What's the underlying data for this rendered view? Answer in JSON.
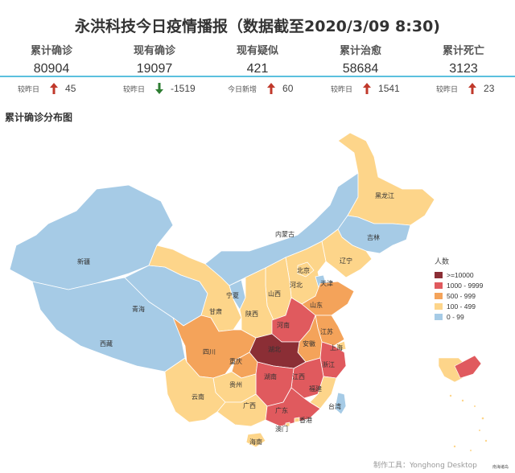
{
  "header": {
    "title": "永洪科技今日疫情播报（数据截至2020/3/09 8:30)"
  },
  "stats": [
    {
      "label": "累计确诊",
      "value": "80904"
    },
    {
      "label": "现有确诊",
      "value": "19097"
    },
    {
      "label": "现有疑似",
      "value": "421"
    },
    {
      "label": "累计治愈",
      "value": "58684"
    },
    {
      "label": "累计死亡",
      "value": "3123"
    }
  ],
  "deltas": [
    {
      "label": "较昨日",
      "direction": "up",
      "value": "45"
    },
    {
      "label": "较昨日",
      "direction": "down",
      "value": "-1519"
    },
    {
      "label": "今日新增",
      "direction": "up",
      "value": "60"
    },
    {
      "label": "较昨日",
      "direction": "up",
      "value": "1541"
    },
    {
      "label": "较昨日",
      "direction": "up",
      "value": "23"
    }
  ],
  "map": {
    "title": "累计确诊分布图",
    "legend_title": "人数",
    "legend": [
      {
        "label": ">=10000",
        "color": "#8b2e35"
      },
      {
        "label": "1000 - 9999",
        "color": "#e05a5e"
      },
      {
        "label": "500 - 999",
        "color": "#f4a35a"
      },
      {
        "label": "100 - 499",
        "color": "#fdd58a"
      },
      {
        "label": "0 - 99",
        "color": "#a6cbe6"
      }
    ],
    "labels": {
      "heilongjiang": "黑龙江",
      "jilin": "吉林",
      "liaoning": "辽宁",
      "neimenggu": "内蒙古",
      "xinjiang": "新疆",
      "xizang": "西藏",
      "qinghai": "青海",
      "gansu": "甘肃",
      "ningxia": "宁夏",
      "shaanxi": "陕西",
      "shanxi": "山西",
      "hebei": "河北",
      "beijing": "北京",
      "tianjin": "天津",
      "shandong": "山东",
      "henan": "河南",
      "jiangsu": "江苏",
      "anhui": "安徽",
      "shanghai": "上海",
      "hubei": "湖北",
      "sichuan": "四川",
      "chongqing": "重庆",
      "zhejiang": "浙江",
      "hunan": "湖南",
      "jiangxi": "江西",
      "guizhou": "贵州",
      "fujian": "福建",
      "yunnan": "云南",
      "guangxi": "广西",
      "guangdong": "广东",
      "taiwan": "台湾",
      "hongkong": "香港",
      "macau": "澳门",
      "hainan": "海南"
    },
    "inset_note": "南海诸岛"
  },
  "footer": {
    "tool": "制作工具：Yonghong Desktop"
  }
}
